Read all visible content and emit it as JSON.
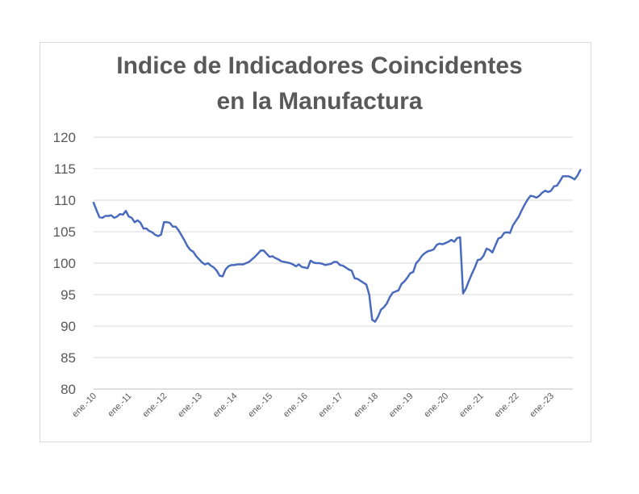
{
  "chart_data": {
    "type": "line",
    "title_line1": "Indice de Indicadores Coincidentes",
    "title_line2": "en la Manufactura",
    "xlabel": "",
    "ylabel": "",
    "ylim": [
      80,
      120
    ],
    "yticks": [
      80,
      85,
      90,
      95,
      100,
      105,
      110,
      115,
      120
    ],
    "xtick_labels": [
      "ene.-10",
      "ene.-11",
      "ene.-12",
      "ene.-13",
      "ene.-14",
      "ene.-15",
      "ene.-16",
      "ene.-17",
      "ene.-18",
      "ene.-19",
      "ene.-20",
      "ene.-21",
      "ene.-22",
      "ene.-23"
    ],
    "grid": true,
    "legend": "none",
    "series_color": "#4a6bbd",
    "x_start": "2010-01",
    "series": [
      {
        "values": [
          109.6,
          108.4,
          107.3,
          107.2,
          107.5,
          107.5,
          107.6,
          107.2,
          107.4,
          107.8,
          107.7,
          108.3,
          107.4,
          107.2,
          106.5,
          106.8,
          106.4,
          105.5,
          105.5,
          105.1,
          104.9,
          104.5,
          104.3,
          104.5,
          106.5,
          106.5,
          106.4,
          105.8,
          105.8,
          105.2,
          104.4,
          103.6,
          102.7,
          102.1,
          101.8,
          101.1,
          100.6,
          100.1,
          99.8,
          100.0,
          99.6,
          99.3,
          98.8,
          98.0,
          97.9,
          99.0,
          99.5,
          99.7,
          99.7,
          99.8,
          99.8,
          99.8,
          100.0,
          100.2,
          100.6,
          101.0,
          101.5,
          102.0,
          102.0,
          101.5,
          101.0,
          101.1,
          100.8,
          100.6,
          100.3,
          100.2,
          100.1,
          100.0,
          99.8,
          99.5,
          99.8,
          99.4,
          99.3,
          99.2,
          100.4,
          100.1,
          100.0,
          100.0,
          99.9,
          99.7,
          99.8,
          99.9,
          100.2,
          100.2,
          99.7,
          99.6,
          99.3,
          99.0,
          98.8,
          97.6,
          97.5,
          97.2,
          96.9,
          96.6,
          95.0,
          91.0,
          90.7,
          91.5,
          92.6,
          93.0,
          93.6,
          94.6,
          95.3,
          95.5,
          95.7,
          96.7,
          97.1,
          97.7,
          98.4,
          98.6,
          100.0,
          100.5,
          101.2,
          101.6,
          101.9,
          102.0,
          102.2,
          102.9,
          103.1,
          103.0,
          103.2,
          103.4,
          103.7,
          103.4,
          104.0,
          104.1,
          95.2,
          96.0,
          97.2,
          98.3,
          99.3,
          100.5,
          100.6,
          101.2,
          102.3,
          102.1,
          101.7,
          102.8,
          103.9,
          104.1,
          104.8,
          104.9,
          104.8,
          106.0,
          106.7,
          107.4,
          108.4,
          109.3,
          110.1,
          110.7,
          110.6,
          110.4,
          110.7,
          111.2,
          111.5,
          111.3,
          111.5,
          112.2,
          112.3,
          113.0,
          113.8,
          113.8,
          113.8,
          113.6,
          113.3,
          113.9,
          114.8
        ]
      }
    ]
  }
}
